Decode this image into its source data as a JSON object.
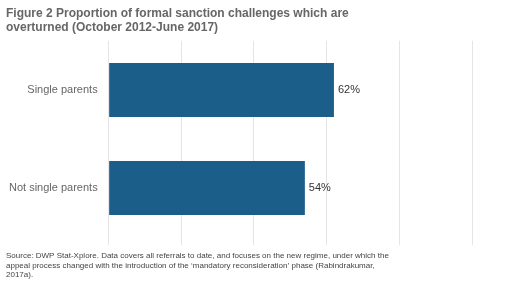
{
  "chart_data": {
    "type": "bar",
    "orientation": "horizontal",
    "title": "Figure 2 Proportion of formal sanction challenges which are\noverturned (October 2012-June 2017)",
    "annotations": [
      "Source: DWP Stat-Xplore. Data covers all referrals to date, and focuses on the new regime, under which the\nappeal process changed with the introduction of the ‘mandatory reconsideration’ phase (Rabindrakumar,\n2017a)."
    ],
    "categories": [
      "Single parents",
      "Not single parents"
    ],
    "values": [
      62,
      54
    ],
    "value_labels": [
      "62%",
      "54%"
    ],
    "data_labels": true,
    "color": "#1b5e8a",
    "xlim": [
      0,
      100
    ],
    "xticks": [
      0,
      20,
      40,
      60,
      80,
      100
    ],
    "grid": true,
    "tick_labels": "y"
  }
}
